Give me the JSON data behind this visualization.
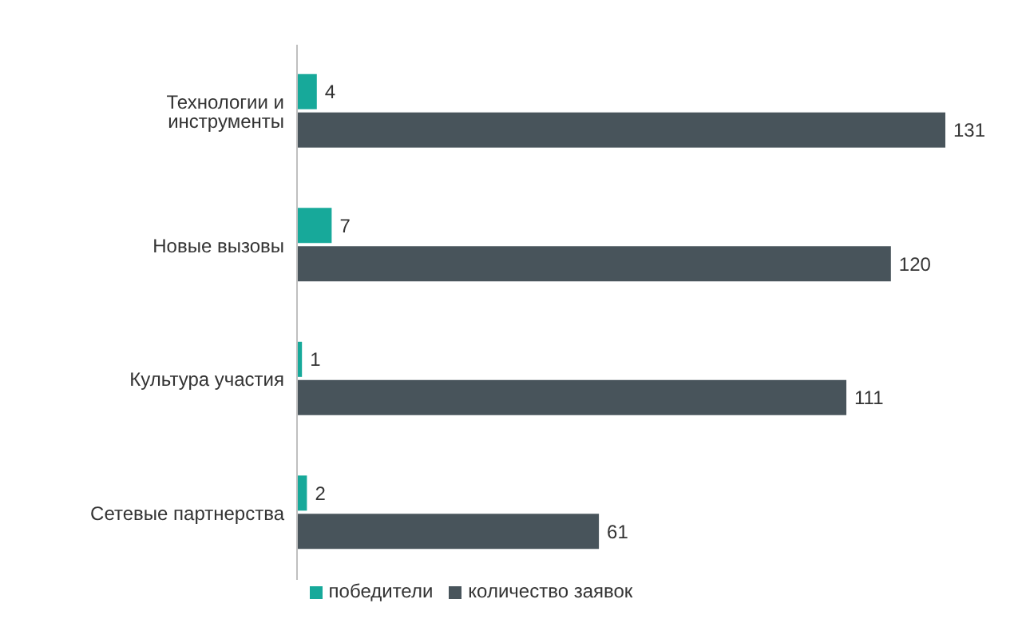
{
  "chart_data": {
    "type": "bar",
    "orientation": "horizontal",
    "categories": [
      "Технологии и инструменты",
      "Новые вызовы",
      "Культура участия",
      "Сетевые партнерства"
    ],
    "series": [
      {
        "name": "победители",
        "color": "#17a99a",
        "values": [
          4,
          7,
          1,
          2
        ]
      },
      {
        "name": "количество заявок",
        "color": "#48545b",
        "values": [
          131,
          120,
          111,
          61
        ]
      }
    ],
    "data_labels": true,
    "legend": "bottom",
    "grid": false
  }
}
